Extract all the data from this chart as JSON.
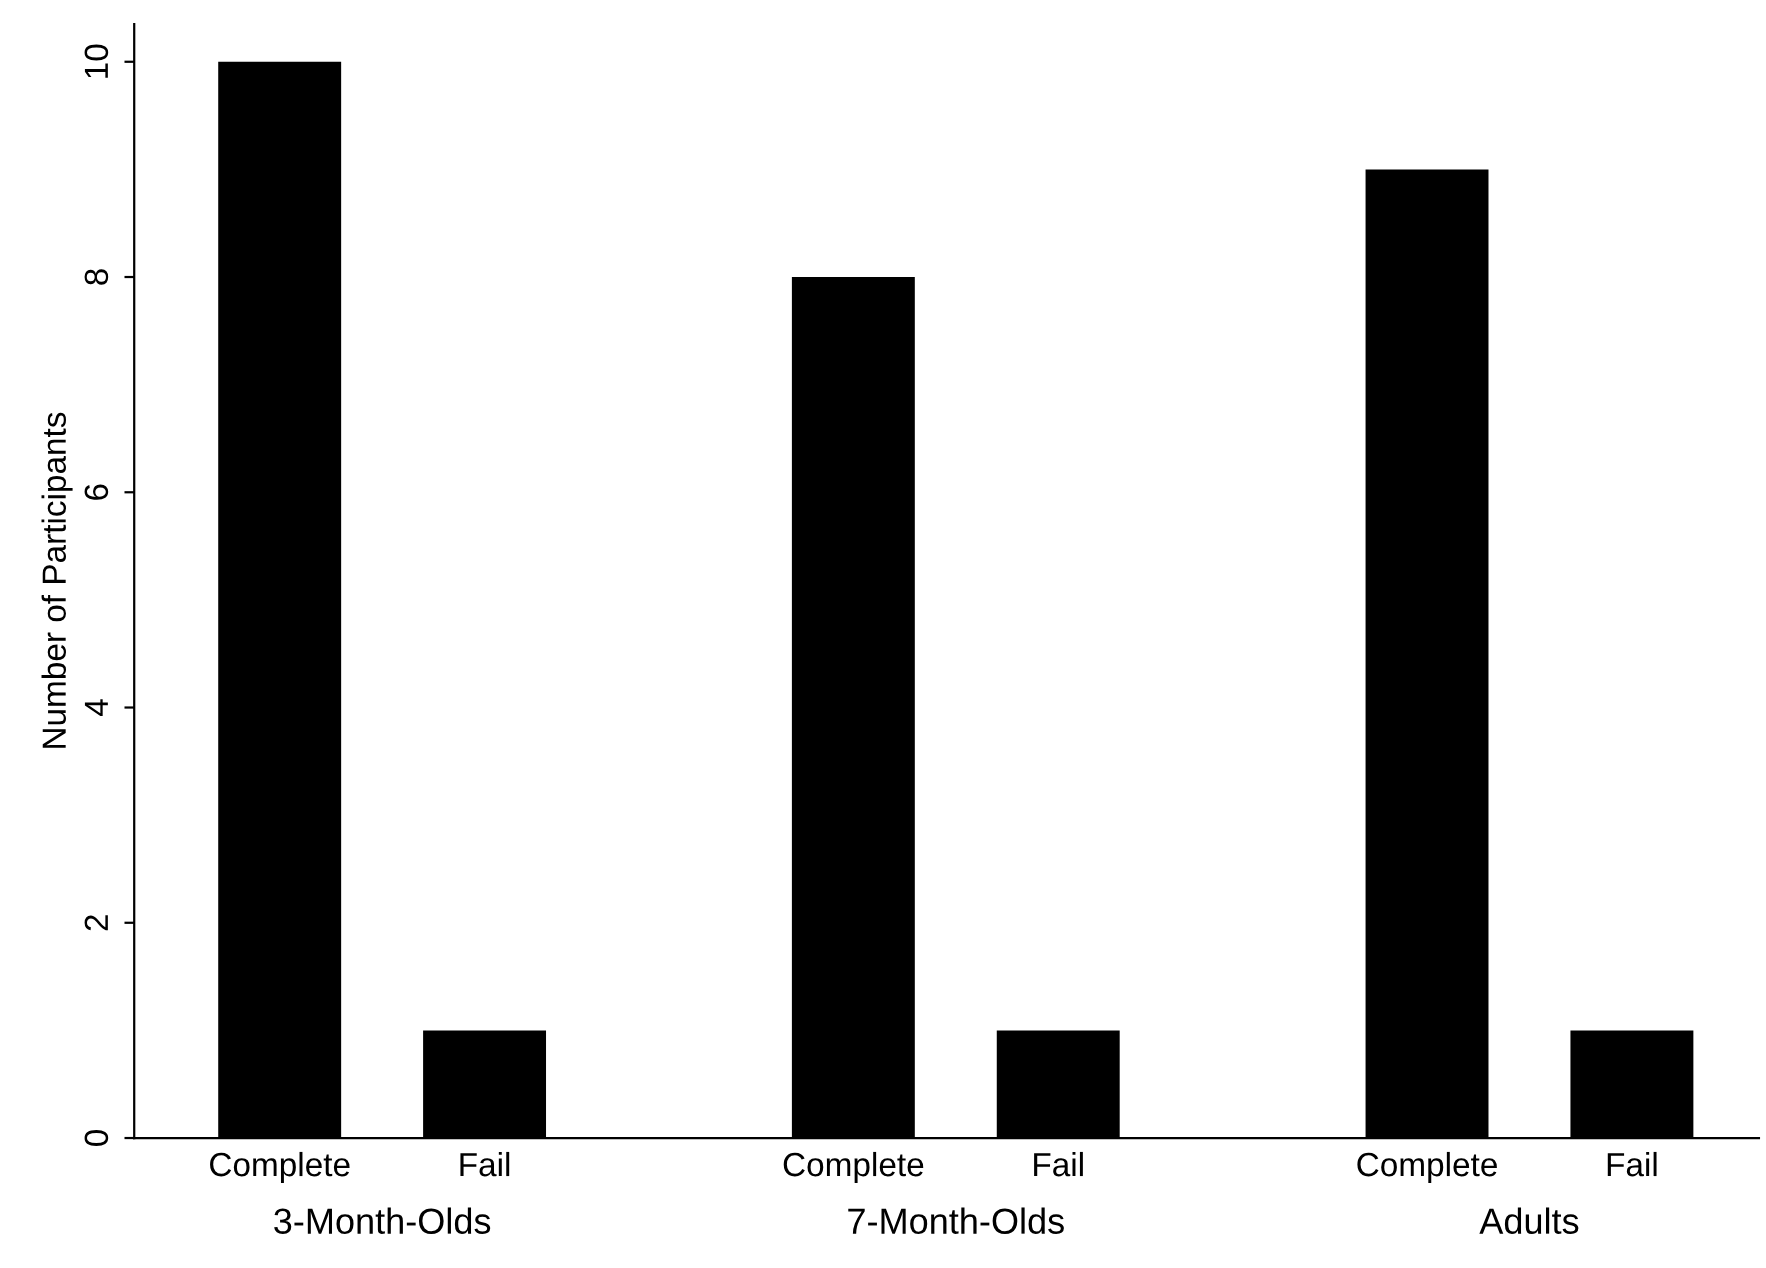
{
  "chart_data": {
    "type": "bar",
    "categories": [
      "Complete",
      "Fail",
      "Complete",
      "Fail",
      "Complete",
      "Fail"
    ],
    "values": [
      10,
      1,
      8,
      1,
      9,
      1
    ],
    "color": "#000000",
    "ylabel": "Number of Participants",
    "ylim": [
      0,
      10.35
    ],
    "yticks": [
      0,
      2,
      4,
      6,
      8,
      10
    ],
    "annotations": [
      "3-Month-Olds",
      "7-Month-Olds",
      "Adults"
    ],
    "grid": false,
    "legend": false
  }
}
